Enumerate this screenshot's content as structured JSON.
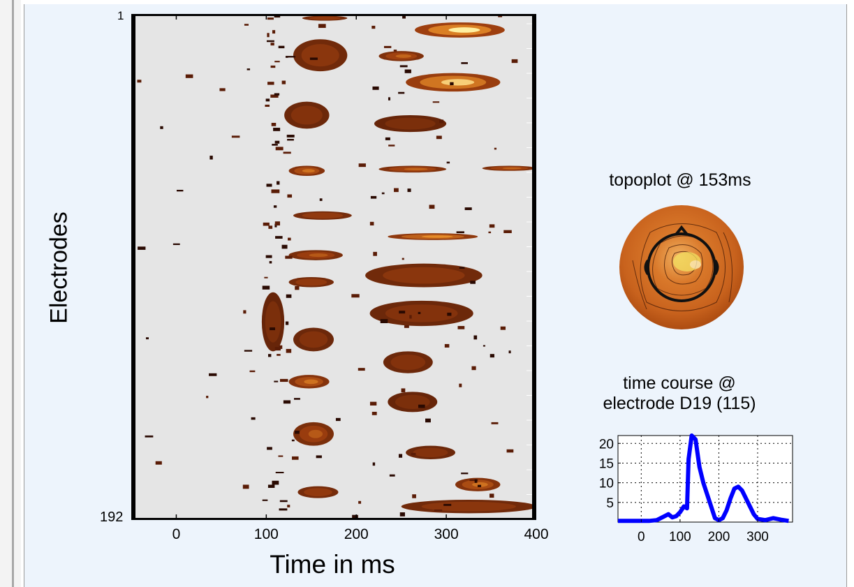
{
  "chart_data": [
    {
      "type": "heatmap",
      "xlabel": "Time in ms",
      "ylabel": "Electrodes",
      "xticks": [
        0,
        100,
        200,
        300,
        400
      ],
      "xlim": [
        -50,
        400
      ],
      "yticks": [
        "1",
        "192"
      ],
      "y_range": [
        1,
        192
      ],
      "grid": false,
      "colormap": {
        "background": "#e5e5e5",
        "low": "#3a1004",
        "mid": "#9e3f0f",
        "high": "#ffefa0"
      },
      "blobs": [
        {
          "t": [
            140,
            190
          ],
          "e": [
            1,
            4
          ],
          "v": 0.6
        },
        {
          "t": [
            265,
            365
          ],
          "e": [
            5,
            14
          ],
          "v": 1.0
        },
        {
          "t": [
            130,
            190
          ],
          "e": [
            15,
            34
          ],
          "v": 0.55
        },
        {
          "t": [
            225,
            275
          ],
          "e": [
            22,
            28
          ],
          "v": 0.7
        },
        {
          "t": [
            255,
            360
          ],
          "e": [
            35,
            46
          ],
          "v": 0.95
        },
        {
          "t": [
            120,
            170
          ],
          "e": [
            52,
            68
          ],
          "v": 0.5
        },
        {
          "t": [
            220,
            300
          ],
          "e": [
            60,
            70
          ],
          "v": 0.45
        },
        {
          "t": [
            125,
            165
          ],
          "e": [
            90,
            96
          ],
          "v": 0.75
        },
        {
          "t": [
            225,
            300
          ],
          "e": [
            90,
            94
          ],
          "v": 0.7
        },
        {
          "t": [
            340,
            400
          ],
          "e": [
            90,
            93
          ],
          "v": 0.7
        },
        {
          "t": [
            130,
            195
          ],
          "e": [
            117,
            122
          ],
          "v": 0.6
        },
        {
          "t": [
            235,
            335
          ],
          "e": [
            130,
            134
          ],
          "v": 0.85
        },
        {
          "t": [
            125,
            185
          ],
          "e": [
            140,
            146
          ],
          "v": 0.65
        },
        {
          "t": [
            210,
            340
          ],
          "e": [
            148,
            162
          ],
          "v": 0.55
        },
        {
          "t": [
            125,
            175
          ],
          "e": [
            156,
            162
          ],
          "v": 0.6
        },
        {
          "t": [
            95,
            120
          ],
          "e": [
            165,
            200
          ],
          "v": 0.45
        },
        {
          "t": [
            215,
            330
          ],
          "e": [
            170,
            185
          ],
          "v": 0.5
        },
        {
          "t": [
            130,
            175
          ],
          "e": [
            186,
            200
          ],
          "v": 0.5
        },
        {
          "t": [
            230,
            285
          ],
          "e": [
            200,
            213
          ],
          "v": 0.5
        },
        {
          "t": [
            125,
            170
          ],
          "e": [
            214,
            222
          ],
          "v": 0.75
        },
        {
          "t": [
            235,
            290
          ],
          "e": [
            224,
            236
          ],
          "v": 0.45
        },
        {
          "t": [
            130,
            175
          ],
          "e": [
            242,
            256
          ],
          "v": 0.65
        },
        {
          "t": [
            255,
            310
          ],
          "e": [
            256,
            264
          ],
          "v": 0.5
        },
        {
          "t": [
            310,
            360
          ],
          "e": [
            275,
            283
          ],
          "v": 0.75
        },
        {
          "t": [
            135,
            180
          ],
          "e": [
            280,
            287
          ],
          "v": 0.6
        },
        {
          "t": [
            250,
            400
          ],
          "e": [
            288,
            296
          ],
          "v": 0.55
        }
      ]
    },
    {
      "type": "line",
      "title": "time course @ electrode D19 (115)",
      "x": [
        -60,
        -40,
        -20,
        0,
        20,
        40,
        60,
        70,
        80,
        90,
        100,
        110,
        118,
        122,
        130,
        140,
        150,
        160,
        170,
        180,
        190,
        200,
        210,
        220,
        230,
        240,
        250,
        260,
        270,
        280,
        290,
        300,
        320,
        340,
        360,
        380
      ],
      "values": [
        0.3,
        0.3,
        0.3,
        0.3,
        0.3,
        0.5,
        1.5,
        2.0,
        1.2,
        1.5,
        2.5,
        4.0,
        3.5,
        16.0,
        22.0,
        21.0,
        14.0,
        10.0,
        7.0,
        4.0,
        1.0,
        0.5,
        1.0,
        3.0,
        6.0,
        8.5,
        9.0,
        8.0,
        6.0,
        4.0,
        2.0,
        0.8,
        0.5,
        1.0,
        0.6,
        0.3
      ],
      "xticks": [
        0,
        100,
        200,
        300
      ],
      "yticks": [
        5,
        10,
        15,
        20
      ],
      "xlim": [
        -60,
        390
      ],
      "ylim": [
        0,
        22
      ],
      "grid": true,
      "color": "#0000ff"
    }
  ],
  "topoplot": {
    "title": "topoplot @ 153ms"
  }
}
